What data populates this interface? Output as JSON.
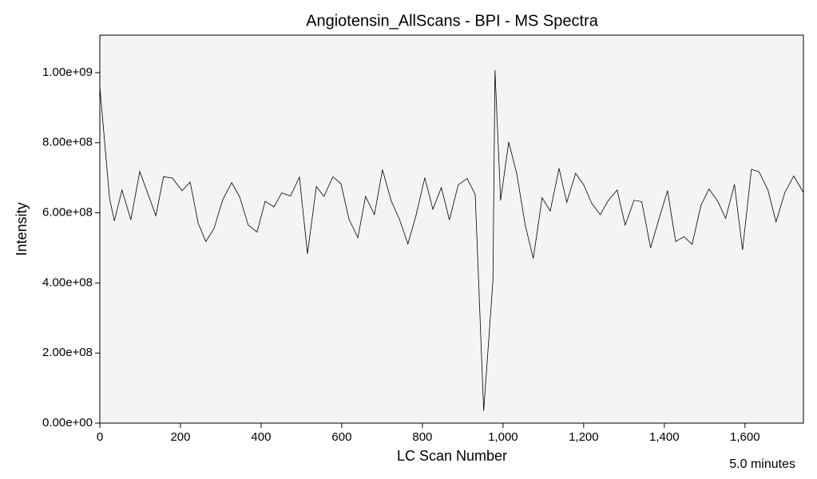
{
  "chart_data": {
    "type": "line",
    "title": "Angiotensin_AllScans - BPI - MS Spectra",
    "x_label": "LC Scan Number",
    "y_label": "Intensity",
    "annotation": "5.0 minutes",
    "color": "#000000",
    "background": "#f4f4f4",
    "xlim": [
      0,
      1745
    ],
    "ylim": [
      0,
      1107000000
    ],
    "xticks": [
      0,
      200,
      400,
      600,
      800,
      {
        "value": 1000,
        "label": "1,000"
      },
      {
        "value": 1200,
        "label": "1,200"
      },
      {
        "value": 1400,
        "label": "1,400"
      },
      {
        "value": 1600,
        "label": "1,600"
      }
    ],
    "yticks": [
      {
        "value": 0,
        "label": "0.00e+00"
      },
      {
        "value": 200000000,
        "label": "2.00e+08"
      },
      {
        "value": 400000000,
        "label": "4.00e+08"
      },
      {
        "value": 600000000,
        "label": "6.00e+08"
      },
      {
        "value": 800000000,
        "label": "8.00e+08"
      },
      {
        "value": 1000000000,
        "label": "1.00e+09"
      }
    ],
    "x": [
      0,
      24,
      36,
      55,
      77,
      99,
      119,
      139,
      158,
      180,
      204,
      224,
      244,
      263,
      283,
      305,
      327,
      347,
      368,
      390,
      410,
      432,
      451,
      473,
      495,
      515,
      537,
      556,
      578,
      598,
      618,
      640,
      659,
      681,
      701,
      723,
      743,
      764,
      784,
      806,
      826,
      847,
      867,
      889,
      911,
      931,
      952,
      975,
      980,
      994,
      1014,
      1034,
      1055,
      1075,
      1097,
      1117,
      1139,
      1158,
      1180,
      1200,
      1220,
      1241,
      1261,
      1283,
      1303,
      1325,
      1344,
      1366,
      1386,
      1408,
      1428,
      1449,
      1469,
      1491,
      1511,
      1533,
      1552,
      1574,
      1594,
      1616,
      1635,
      1657,
      1677,
      1699,
      1721,
      1745
    ],
    "values": [
      960000000,
      642000000,
      577000000,
      665000000,
      580000000,
      718000000,
      655000000,
      592000000,
      703000000,
      699000000,
      663000000,
      688000000,
      570000000,
      518000000,
      555000000,
      638000000,
      686000000,
      645000000,
      565000000,
      545000000,
      633000000,
      617000000,
      657000000,
      648000000,
      702000000,
      483000000,
      675000000,
      647000000,
      703000000,
      683000000,
      582000000,
      529000000,
      647000000,
      595000000,
      723000000,
      633000000,
      582000000,
      511000000,
      592000000,
      700000000,
      610000000,
      672000000,
      580000000,
      680000000,
      698000000,
      652000000,
      35000000,
      407000000,
      1007000000,
      635000000,
      802000000,
      712000000,
      565000000,
      470000000,
      643000000,
      605000000,
      727000000,
      630000000,
      713000000,
      680000000,
      627000000,
      595000000,
      635000000,
      665000000,
      565000000,
      636000000,
      632000000,
      500000000,
      580000000,
      663000000,
      518000000,
      532000000,
      510000000,
      622000000,
      668000000,
      632000000,
      584000000,
      681000000,
      494000000,
      724000000,
      717000000,
      665000000,
      574000000,
      658000000,
      705000000,
      658000000
    ]
  }
}
